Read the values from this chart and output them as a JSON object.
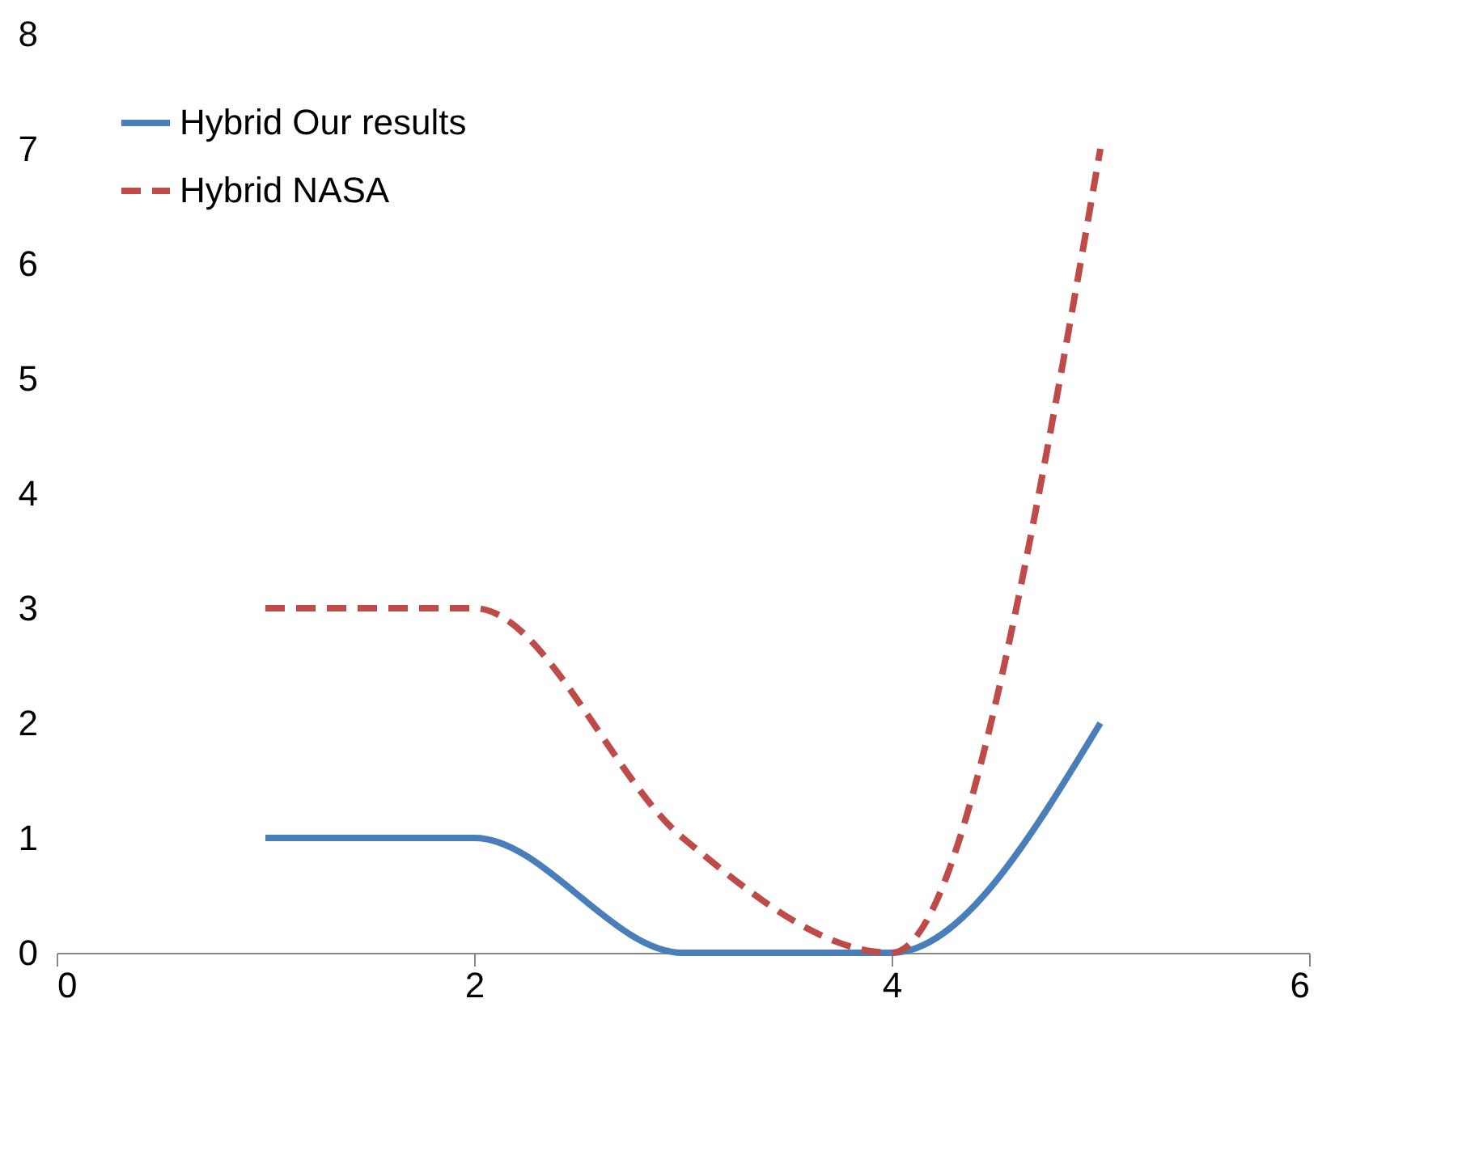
{
  "chart_data": {
    "type": "line",
    "x": [
      1,
      2,
      3,
      4,
      5
    ],
    "series": [
      {
        "name": "Hybrid Our results",
        "color": "#4a7ebb",
        "values": [
          1,
          1,
          0,
          0,
          2
        ],
        "line_style": "solid"
      },
      {
        "name": "Hybrid NASA",
        "color": "#be4b48",
        "values": [
          3,
          3,
          1,
          0,
          7
        ],
        "line_style": "dashed"
      }
    ],
    "xlim": [
      0,
      6
    ],
    "xticks": [
      0,
      2,
      4,
      6
    ],
    "ylim": [
      0,
      8
    ],
    "yticks": [
      0,
      1,
      2,
      3,
      4,
      5,
      6,
      7,
      8
    ],
    "grid": false,
    "legend": "top left",
    "marker": "none"
  }
}
